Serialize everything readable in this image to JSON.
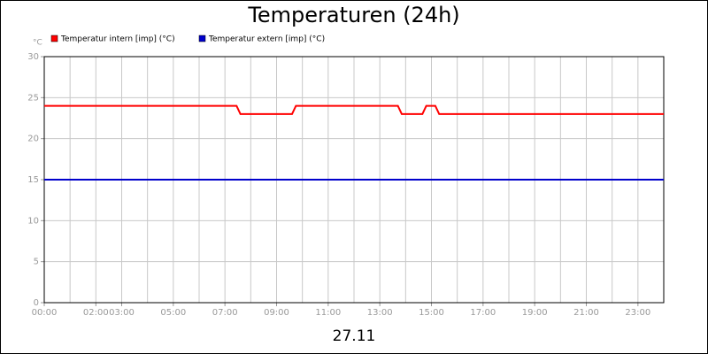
{
  "chart_data": {
    "type": "line",
    "title": "Temperaturen (24h)",
    "y_unit": "°C",
    "x_label": "27.11",
    "xlim": [
      0,
      24
    ],
    "ylim": [
      0,
      30
    ],
    "yticks": [
      0,
      5,
      10,
      15,
      20,
      25,
      30
    ],
    "grid": true,
    "xticks": [
      {
        "value": 0,
        "label": "00:00"
      },
      {
        "value": 2,
        "label": "02:00"
      },
      {
        "value": 3,
        "label": "03:00"
      },
      {
        "value": 5,
        "label": "05:00"
      },
      {
        "value": 7,
        "label": "07:00"
      },
      {
        "value": 9,
        "label": "09:00"
      },
      {
        "value": 11,
        "label": "11:00"
      },
      {
        "value": 13,
        "label": "13:00"
      },
      {
        "value": 15,
        "label": "15:00"
      },
      {
        "value": 17,
        "label": "17:00"
      },
      {
        "value": 19,
        "label": "19:00"
      },
      {
        "value": 21,
        "label": "21:00"
      },
      {
        "value": 23,
        "label": "23:00"
      }
    ],
    "series": [
      {
        "name": "Temperatur intern [imp] (°C)",
        "color": "#ff0000",
        "x": [
          0,
          7.45,
          7.6,
          9.6,
          9.75,
          13.7,
          13.85,
          14.65,
          14.8,
          15.15,
          15.3,
          24
        ],
        "values": [
          24,
          24,
          23,
          23,
          24,
          24,
          23,
          23,
          24,
          24,
          23,
          23
        ]
      },
      {
        "name": "Temperatur extern [imp] (°C)",
        "color": "#0000cc",
        "x": [
          0,
          24
        ],
        "values": [
          15,
          15
        ]
      }
    ]
  }
}
